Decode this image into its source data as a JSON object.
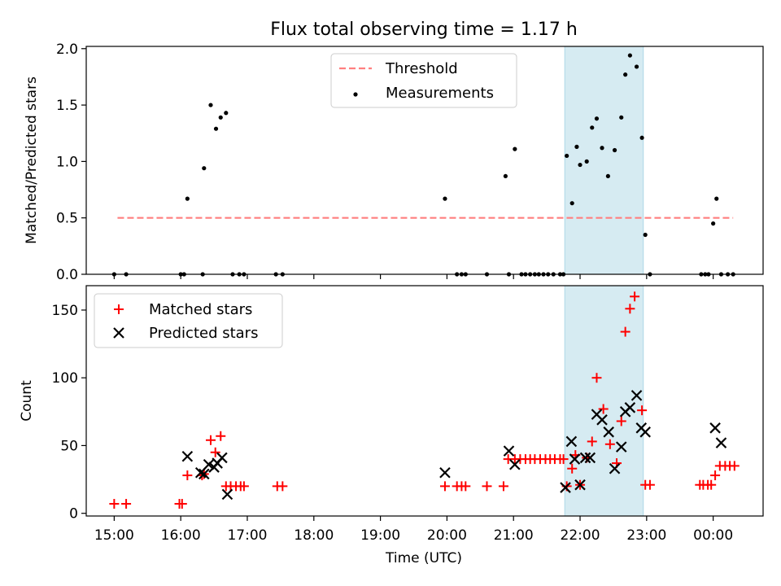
{
  "title": "Flux total observing time = 1.17 h",
  "colors": {
    "threshold": "#ff7f7f",
    "measurement": "#000000",
    "matched": "#ff0000",
    "predicted": "#000000",
    "highlight": "#add8e6"
  },
  "chart_data": [
    {
      "type": "scatter",
      "panel": "top",
      "ylabel": "Matched/Predicted stars",
      "ylim": [
        0,
        2.02
      ],
      "yticks": [
        0.0,
        0.5,
        1.0,
        1.5,
        2.0
      ],
      "ytick_labels": [
        "0.0",
        "0.5",
        "1.0",
        "1.5",
        "2.0"
      ],
      "xlim_hours": [
        14.58,
        24.75
      ],
      "highlight_span_hours": [
        21.77,
        22.95
      ],
      "legend_position": "upper center",
      "legend": [
        "Threshold",
        "Measurements"
      ],
      "threshold": {
        "name": "Threshold",
        "x": [
          15.05,
          24.3
        ],
        "y": 0.5,
        "style": "dashed"
      },
      "series": [
        {
          "name": "Measurements",
          "x": [
            15.0,
            15.18,
            16.0,
            16.05,
            16.1,
            16.33,
            16.35,
            16.45,
            16.53,
            16.6,
            16.68,
            16.78,
            16.88,
            16.95,
            17.43,
            17.53,
            19.97,
            20.15,
            20.22,
            20.28,
            20.6,
            20.88,
            20.93,
            21.02,
            21.12,
            21.18,
            21.25,
            21.32,
            21.38,
            21.45,
            21.52,
            21.6,
            21.7,
            21.75,
            21.8,
            21.88,
            21.95,
            22.0,
            22.1,
            22.18,
            22.25,
            22.33,
            22.42,
            22.52,
            22.62,
            22.68,
            22.75,
            22.85,
            22.93,
            22.98,
            23.05,
            23.82,
            23.88,
            23.93,
            24.0,
            24.05,
            24.12,
            24.22,
            24.3
          ],
          "y": [
            0,
            0,
            0,
            0,
            0.67,
            0,
            0.94,
            1.5,
            1.29,
            1.39,
            1.43,
            0,
            0,
            0,
            0,
            0,
            0.67,
            0,
            0,
            0,
            0,
            0.87,
            0,
            1.11,
            0,
            0,
            0,
            0,
            0,
            0,
            0,
            0,
            0,
            0,
            1.05,
            0.63,
            1.13,
            0.97,
            1.0,
            1.3,
            1.38,
            1.12,
            0.87,
            1.1,
            1.39,
            1.77,
            1.94,
            1.84,
            1.21,
            0.35,
            0,
            0,
            0,
            0,
            0.45,
            0.67,
            0,
            0,
            0
          ]
        }
      ]
    },
    {
      "type": "scatter",
      "panel": "bottom",
      "xlabel": "Time (UTC)",
      "ylabel": "Count",
      "ylim": [
        -2,
        168
      ],
      "yticks": [
        0,
        50,
        100,
        150
      ],
      "ytick_labels": [
        "0",
        "50",
        "100",
        "150"
      ],
      "xlim_hours": [
        14.58,
        24.75
      ],
      "xticks_hours": [
        15,
        16,
        17,
        18,
        19,
        20,
        21,
        22,
        23,
        24
      ],
      "xtick_labels": [
        "15:00",
        "16:00",
        "17:00",
        "18:00",
        "19:00",
        "20:00",
        "21:00",
        "22:00",
        "23:00",
        "00:00"
      ],
      "highlight_span_hours": [
        21.77,
        22.95
      ],
      "legend_position": "upper left",
      "legend": [
        "Matched stars",
        "Predicted stars"
      ],
      "series": [
        {
          "name": "Matched stars",
          "marker": "plus",
          "x": [
            15.0,
            15.18,
            15.98,
            16.02,
            16.1,
            16.32,
            16.35,
            16.45,
            16.52,
            16.6,
            16.68,
            16.75,
            16.83,
            16.9,
            16.95,
            17.45,
            17.53,
            19.97,
            20.15,
            20.22,
            20.28,
            20.6,
            20.85,
            20.92,
            21.02,
            21.1,
            21.18,
            21.25,
            21.32,
            21.4,
            21.48,
            21.55,
            21.62,
            21.7,
            21.75,
            21.8,
            21.88,
            21.93,
            22.0,
            22.1,
            22.18,
            22.25,
            22.35,
            22.45,
            22.55,
            22.62,
            22.68,
            22.75,
            22.82,
            22.93,
            22.98,
            23.05,
            23.8,
            23.85,
            23.92,
            23.97,
            24.03,
            24.1,
            24.18,
            24.25,
            24.32
          ],
          "y": [
            7,
            7,
            7,
            7,
            28,
            28,
            29,
            54,
            45,
            57,
            20,
            20,
            20,
            20,
            20,
            20,
            20,
            20,
            20,
            20,
            20,
            20,
            20,
            40,
            40,
            40,
            40,
            40,
            40,
            40,
            40,
            40,
            40,
            40,
            40,
            20,
            33,
            43,
            21,
            41,
            53,
            100,
            77,
            51,
            37,
            68,
            134,
            151,
            160,
            76,
            21,
            21,
            21,
            21,
            21,
            21,
            28,
            35,
            35,
            35,
            35
          ]
        },
        {
          "name": "Predicted stars",
          "marker": "x",
          "x": [
            16.1,
            16.3,
            16.35,
            16.42,
            16.5,
            16.55,
            16.62,
            16.7,
            19.97,
            20.93,
            21.02,
            21.78,
            21.87,
            21.92,
            22.0,
            22.08,
            22.15,
            22.25,
            22.33,
            22.43,
            22.52,
            22.62,
            22.68,
            22.75,
            22.85,
            22.92,
            22.98,
            24.03,
            24.12
          ],
          "y": [
            42,
            30,
            29,
            36,
            34,
            37,
            41,
            14,
            30,
            46,
            36,
            19,
            53,
            40,
            21,
            41,
            41,
            73,
            69,
            60,
            33,
            49,
            75,
            78,
            87,
            63,
            60,
            63,
            52
          ]
        }
      ]
    }
  ]
}
